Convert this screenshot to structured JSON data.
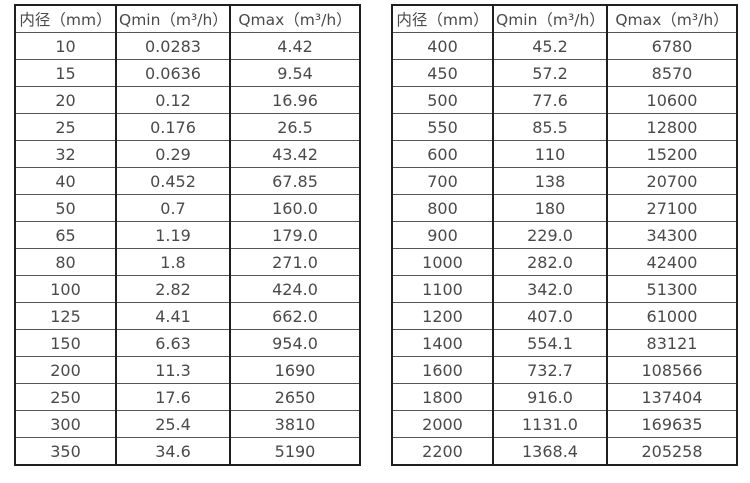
{
  "page": {
    "background_color": "#ffffff",
    "text_color": "#4a4a4a",
    "border_color": "#1f1f1f"
  },
  "tables": [
    {
      "name": "flow-range-table-small-diameters",
      "columns": [
        "内径（mm）",
        "Qmin（m³/h）",
        "Qmax（m³/h）"
      ],
      "rows": [
        [
          "10",
          "0.0283",
          "4.42"
        ],
        [
          "15",
          "0.0636",
          "9.54"
        ],
        [
          "20",
          "0.12",
          "16.96"
        ],
        [
          "25",
          "0.176",
          "26.5"
        ],
        [
          "32",
          "0.29",
          "43.42"
        ],
        [
          "40",
          "0.452",
          "67.85"
        ],
        [
          "50",
          "0.7",
          "160.0"
        ],
        [
          "65",
          "1.19",
          "179.0"
        ],
        [
          "80",
          "1.8",
          "271.0"
        ],
        [
          "100",
          "2.82",
          "424.0"
        ],
        [
          "125",
          "4.41",
          "662.0"
        ],
        [
          "150",
          "6.63",
          "954.0"
        ],
        [
          "200",
          "11.3",
          "1690"
        ],
        [
          "250",
          "17.6",
          "2650"
        ],
        [
          "300",
          "25.4",
          "3810"
        ],
        [
          "350",
          "34.6",
          "5190"
        ]
      ]
    },
    {
      "name": "flow-range-table-large-diameters",
      "columns": [
        "内径（mm）",
        "Qmin（m³/h）",
        "Qmax（m³/h）"
      ],
      "rows": [
        [
          "400",
          "45.2",
          "6780"
        ],
        [
          "450",
          "57.2",
          "8570"
        ],
        [
          "500",
          "77.6",
          "10600"
        ],
        [
          "550",
          "85.5",
          "12800"
        ],
        [
          "600",
          "110",
          "15200"
        ],
        [
          "700",
          "138",
          "20700"
        ],
        [
          "800",
          "180",
          "27100"
        ],
        [
          "900",
          "229.0",
          "34300"
        ],
        [
          "1000",
          "282.0",
          "42400"
        ],
        [
          "1100",
          "342.0",
          "51300"
        ],
        [
          "1200",
          "407.0",
          "61000"
        ],
        [
          "1400",
          "554.1",
          "83121"
        ],
        [
          "1600",
          "732.7",
          "108566"
        ],
        [
          "1800",
          "916.0",
          "137404"
        ],
        [
          "2000",
          "1131.0",
          "169635"
        ],
        [
          "2200",
          "1368.4",
          "205258"
        ]
      ]
    }
  ]
}
